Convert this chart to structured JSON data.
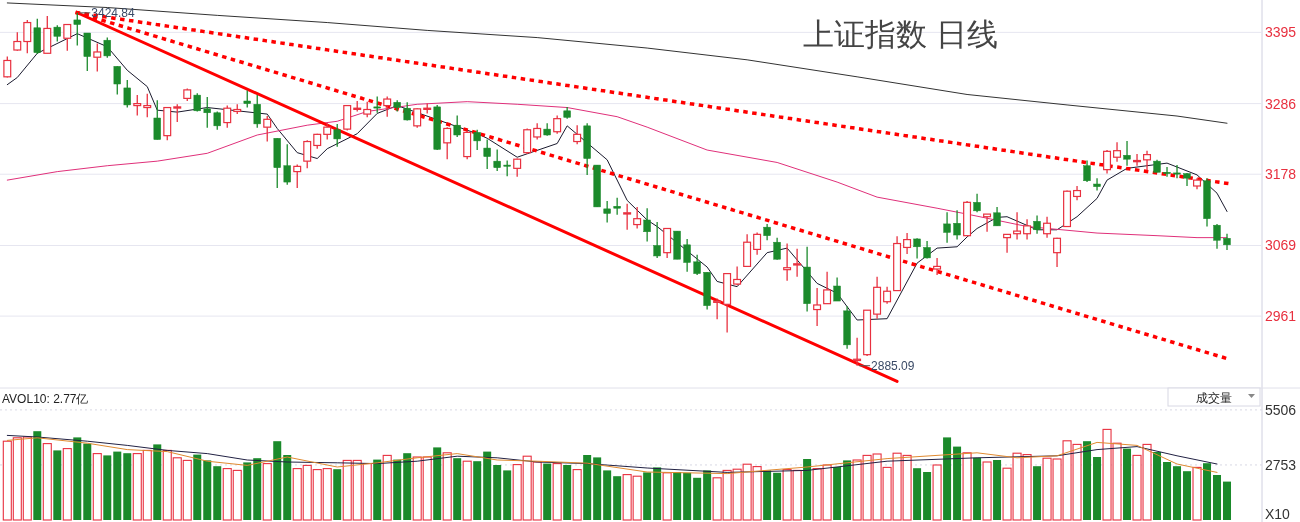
{
  "chart_data": [
    {
      "type": "candlestick",
      "title": "上证指数 日线",
      "categories": [
        null,
        null,
        null,
        null,
        null,
        null,
        null,
        null,
        null,
        null,
        null,
        null,
        null,
        null,
        null,
        null,
        null,
        null,
        null,
        null,
        null,
        null,
        null,
        null,
        null,
        null,
        null,
        null,
        null,
        null,
        null,
        null,
        null,
        null,
        null,
        null,
        null,
        null,
        null,
        null,
        null,
        null,
        null,
        null,
        null,
        null,
        null,
        null,
        null,
        null,
        null,
        null,
        null,
        null,
        null,
        null,
        null,
        null,
        null,
        null,
        null,
        null,
        null,
        null,
        null,
        null,
        null,
        null,
        null,
        null,
        null,
        null,
        null,
        null,
        null,
        null,
        null,
        null,
        null,
        null,
        null,
        null,
        null,
        null,
        null,
        null,
        null,
        null,
        null,
        null,
        null,
        null,
        null,
        null,
        null,
        null,
        null,
        null,
        null,
        null,
        null,
        null,
        null,
        null,
        null,
        null,
        null,
        null,
        null,
        null,
        null,
        null,
        null,
        null,
        null,
        null,
        null,
        null,
        null,
        null,
        null,
        null,
        null
      ],
      "ohlc": [
        [
          3327,
          3358,
          3326,
          3352
        ],
        [
          3368,
          3395,
          3367,
          3381
        ],
        [
          3381,
          3414,
          3363,
          3410
        ],
        [
          3402,
          3416,
          3362,
          3364
        ],
        [
          3363,
          3420,
          3363,
          3401
        ],
        [
          3403,
          3406,
          3381,
          3389
        ],
        [
          3386,
          3407,
          3367,
          3407
        ],
        [
          3414,
          3424.84,
          3375,
          3407
        ],
        [
          3394,
          3394,
          3336,
          3358
        ],
        [
          3357,
          3378,
          3335,
          3365
        ],
        [
          3383,
          3387,
          3356,
          3359
        ],
        [
          3343,
          3343,
          3300,
          3316
        ],
        [
          3310,
          3322,
          3280,
          3284
        ],
        [
          3283,
          3299,
          3268,
          3286
        ],
        [
          3280,
          3301,
          3265,
          3283
        ],
        [
          3264,
          3291,
          3231,
          3231
        ],
        [
          3237,
          3280,
          3230,
          3280
        ],
        [
          3280,
          3285,
          3258,
          3281
        ],
        [
          3294,
          3309,
          3290,
          3307
        ],
        [
          3299,
          3302,
          3274,
          3275
        ],
        [
          3278,
          3296,
          3249,
          3272
        ],
        [
          3272,
          3274,
          3246,
          3252
        ],
        [
          3257,
          3283,
          3249,
          3279
        ],
        [
          3274,
          3285,
          3270,
          3277
        ],
        [
          3290,
          3306,
          3280,
          3286
        ],
        [
          3285,
          3299,
          3249,
          3255
        ],
        [
          3250,
          3267,
          3228,
          3262
        ],
        [
          3233,
          3233,
          3157,
          3188
        ],
        [
          3191,
          3224,
          3162,
          3166
        ],
        [
          3182,
          3193,
          3157,
          3190
        ],
        [
          3198,
          3230,
          3187,
          3228
        ],
        [
          3222,
          3240,
          3217,
          3239
        ],
        [
          3239,
          3256,
          3231,
          3250
        ],
        [
          3246,
          3255,
          3220,
          3232
        ],
        [
          3247,
          3283,
          3245,
          3283
        ],
        [
          3278,
          3290,
          3274,
          3279
        ],
        [
          3270,
          3289,
          3265,
          3277
        ],
        [
          3281,
          3297,
          3272,
          3280
        ],
        [
          3283,
          3297,
          3266,
          3293
        ],
        [
          3288,
          3291,
          3274,
          3280
        ],
        [
          3279,
          3288,
          3260,
          3261
        ],
        [
          3252,
          3279,
          3249,
          3278
        ],
        [
          3278,
          3286,
          3271,
          3279
        ],
        [
          3281,
          3284,
          3215,
          3216
        ],
        [
          3226,
          3250,
          3201,
          3248
        ],
        [
          3253,
          3268,
          3235,
          3238
        ],
        [
          3205,
          3244,
          3201,
          3242
        ],
        [
          3242,
          3246,
          3215,
          3229
        ],
        [
          3218,
          3231,
          3186,
          3205
        ],
        [
          3198,
          3216,
          3183,
          3188
        ],
        [
          3192,
          3199,
          3175,
          3191
        ],
        [
          3187,
          3202,
          3174,
          3201
        ],
        [
          3211,
          3248,
          3209,
          3246
        ],
        [
          3235,
          3256,
          3231,
          3248
        ],
        [
          3247,
          3256,
          3237,
          3238
        ],
        [
          3243,
          3268,
          3240,
          3263
        ],
        [
          3275,
          3281,
          3263,
          3265
        ],
        [
          3228,
          3253,
          3224,
          3239
        ],
        [
          3252,
          3256,
          3177,
          3202
        ],
        [
          3192,
          3192,
          3128,
          3128
        ],
        [
          3125,
          3137,
          3104,
          3118
        ],
        [
          3129,
          3142,
          3116,
          3126
        ],
        [
          3118,
          3133,
          3093,
          3119
        ],
        [
          3101,
          3128,
          3095,
          3110
        ],
        [
          3108,
          3126,
          3075,
          3090
        ],
        [
          3069,
          3105,
          3050,
          3053
        ],
        [
          3058,
          3095,
          3050,
          3095
        ],
        [
          3091,
          3091,
          3048,
          3048
        ],
        [
          3070,
          3079,
          3029,
          3043
        ],
        [
          3044,
          3055,
          3024,
          3026
        ],
        [
          3028,
          3028,
          2971,
          2977
        ],
        [
          2982,
          2988,
          2956,
          2984
        ],
        [
          2979,
          3026,
          2936,
          3026
        ],
        [
          3010,
          3037,
          3008,
          3017
        ],
        [
          3037,
          3086,
          3036,
          3074
        ],
        [
          3063,
          3089,
          3055,
          3086
        ],
        [
          3097,
          3102,
          3077,
          3084
        ],
        [
          3074,
          3081,
          3047,
          3048
        ],
        [
          3032,
          3072,
          3015,
          3035
        ],
        [
          3040,
          3064,
          3021,
          3041
        ],
        [
          3036,
          3067,
          2968,
          2980
        ],
        [
          2971,
          3004,
          2946,
          2978
        ],
        [
          2980,
          3029,
          2980,
          3001
        ],
        [
          3007,
          3020,
          2984,
          2984
        ],
        [
          2969,
          2976,
          2911,
          2917
        ],
        [
          2893,
          2928,
          2885.09,
          2895
        ],
        [
          2902,
          2970,
          2900,
          2970
        ],
        [
          2964,
          3021,
          2957,
          3005
        ],
        [
          2983,
          3006,
          2980,
          2999
        ],
        [
          3000,
          3083,
          3000,
          3072
        ],
        [
          3066,
          3088,
          3056,
          3078
        ],
        [
          3079,
          3080,
          3049,
          3067
        ],
        [
          3066,
          3076,
          3049,
          3050
        ],
        [
          3033,
          3050,
          3024,
          3037
        ],
        [
          3102,
          3120,
          3073,
          3089
        ],
        [
          3103,
          3123,
          3078,
          3085
        ],
        [
          3084,
          3137,
          3084,
          3135
        ],
        [
          3135,
          3148,
          3120,
          3122
        ],
        [
          3113,
          3117,
          3090,
          3117
        ],
        [
          3119,
          3128,
          3099,
          3099
        ],
        [
          3081,
          3086,
          3058,
          3086
        ],
        [
          3087,
          3120,
          3078,
          3091
        ],
        [
          3087,
          3109,
          3078,
          3099
        ],
        [
          3106,
          3115,
          3087,
          3093
        ],
        [
          3087,
          3113,
          3081,
          3103
        ],
        [
          3058,
          3081,
          3036,
          3080
        ],
        [
          3098,
          3153,
          3098,
          3152
        ],
        [
          3144,
          3160,
          3138,
          3153
        ],
        [
          3191,
          3199,
          3166,
          3168
        ],
        [
          3163,
          3172,
          3153,
          3159
        ],
        [
          3185,
          3215,
          3179,
          3213
        ],
        [
          3204,
          3227,
          3197,
          3214
        ],
        [
          3207,
          3229,
          3191,
          3201
        ],
        [
          3198,
          3209,
          3191,
          3199
        ],
        [
          3200,
          3214,
          3184,
          3208
        ],
        [
          3198,
          3200,
          3181,
          3181
        ],
        [
          3181,
          3189,
          3174,
          3179
        ],
        [
          3180,
          3192,
          3172,
          3179
        ],
        [
          3179,
          3180,
          3160,
          3172
        ],
        [
          3160,
          3172,
          3155,
          3169
        ],
        [
          3168,
          3172,
          3098,
          3110
        ],
        [
          3100,
          3102,
          3064,
          3077
        ],
        [
          3080,
          3087,
          3062,
          3070
        ]
      ],
      "series": [
        {
          "type": "line",
          "color": "#1a1a2e",
          "values": [
            3315,
            3326,
            null,
            3363,
            null,
            null,
            null,
            3393,
            null,
            null,
            3373,
            null,
            3337,
            null,
            3312,
            3276,
            null,
            3273,
            null,
            null,
            3280,
            null,
            null,
            null,
            null,
            null,
            3270,
            3248,
            null,
            3211,
            null,
            3202,
            3217,
            null,
            null,
            3240,
            null,
            3271,
            null,
            3283,
            null,
            null,
            null,
            null,
            null,
            null,
            null,
            3240,
            3233,
            null,
            null,
            3204,
            null,
            null,
            null,
            3225,
            3252,
            null,
            null,
            null,
            3200,
            null,
            3138,
            null,
            3108,
            3098,
            null,
            null,
            null,
            null,
            3036,
            3014,
            null,
            3006,
            null,
            null,
            3058,
            null,
            3065,
            null,
            null,
            3011,
            null,
            2996,
            null,
            2955,
            null,
            null,
            2957,
            null,
            null,
            3042,
            null,
            3065,
            null,
            3067,
            3082,
            3095,
            null,
            3112,
            3113,
            null,
            null,
            3093,
            null,
            3093,
            null,
            3113,
            null,
            3141,
            3169,
            null,
            3187,
            null,
            null,
            null,
            3195,
            null,
            null,
            3177,
            null,
            3149,
            3121
          ]
        },
        {
          "type": "line",
          "color": "#e0307a",
          "values": [
            3169,
            null,
            null,
            null,
            null,
            3182,
            null,
            null,
            null,
            null,
            3191,
            null,
            null,
            null,
            null,
            3198,
            null,
            null,
            null,
            null,
            3210,
            null,
            null,
            null,
            null,
            3238,
            null,
            null,
            null,
            null,
            3253,
            null,
            null,
            3259,
            null,
            null,
            3274,
            null,
            null,
            null,
            null,
            3285,
            null,
            null,
            null,
            null,
            3289,
            null,
            null,
            null,
            null,
            3285,
            null,
            null,
            null,
            null,
            3280,
            null,
            null,
            null,
            null,
            3266,
            null,
            null,
            3250,
            null,
            null,
            null,
            null,
            null,
            3215,
            null,
            null,
            null,
            null,
            null,
            null,
            3196,
            null,
            null,
            null,
            null,
            null,
            3166,
            null,
            null,
            null,
            3143,
            null,
            null,
            null,
            null,
            null,
            3126,
            null,
            null,
            3117,
            null,
            null,
            null,
            null,
            null,
            3098,
            null,
            null,
            null,
            null,
            null,
            null,
            3088,
            null,
            null,
            null,
            null,
            null,
            3084,
            null,
            null,
            null,
            3081,
            null,
            null,
            3081
          ]
        },
        {
          "type": "line",
          "color": "#333333",
          "values": [
            3440,
            null,
            null,
            null,
            null,
            null,
            null,
            null,
            null,
            null,
            3433,
            null,
            null,
            null,
            null,
            null,
            null,
            null,
            null,
            null,
            null,
            3421,
            null,
            null,
            null,
            null,
            null,
            null,
            null,
            null,
            null,
            null,
            3410,
            null,
            null,
            null,
            null,
            null,
            null,
            null,
            null,
            null,
            3398,
            null,
            null,
            null,
            null,
            null,
            null,
            null,
            null,
            null,
            null,
            3387,
            null,
            null,
            null,
            null,
            null,
            null,
            null,
            null,
            null,
            null,
            3371,
            null,
            null,
            null,
            null,
            null,
            null,
            null,
            null,
            null,
            3353,
            null,
            null,
            null,
            null,
            null,
            null,
            null,
            null,
            null,
            null,
            3327,
            null,
            null,
            null,
            null,
            null,
            null,
            null,
            null,
            null,
            null,
            3300,
            null,
            null,
            null,
            null,
            null,
            null,
            null,
            null,
            null,
            3284,
            null,
            null,
            null,
            null,
            null,
            null,
            null,
            null,
            null,
            null,
            3267,
            null,
            null,
            null,
            null,
            3256
          ]
        },
        {
          "type": "line",
          "color": "#ff0000",
          "line_style": "solid",
          "values": [
            null,
            null,
            null,
            null,
            null,
            null,
            null,
            3425,
            null,
            null,
            null,
            null,
            null,
            null,
            null,
            null,
            null,
            null,
            null,
            null,
            null,
            null,
            null,
            null,
            null,
            null,
            null,
            null,
            null,
            null,
            null,
            null,
            null,
            null,
            null,
            null,
            null,
            null,
            null,
            null,
            null,
            null,
            null,
            null,
            null,
            null,
            null,
            null,
            null,
            null,
            null,
            null,
            null,
            null,
            null,
            null,
            null,
            null,
            null,
            null,
            null,
            null,
            null,
            null,
            null,
            null,
            null,
            null,
            null,
            null,
            null,
            null,
            null,
            null,
            null,
            null,
            null,
            null,
            null,
            null,
            null,
            null,
            null,
            null,
            null,
            null,
            null,
            null,
            null,
            2861,
            null,
            null,
            null,
            null,
            null,
            null,
            null,
            null,
            null,
            null,
            null,
            null,
            null,
            null,
            null,
            null,
            null,
            null,
            null,
            null,
            null,
            null,
            null,
            null,
            null,
            null,
            null,
            null,
            null,
            null,
            null,
            null,
            null
          ]
        },
        {
          "type": "line",
          "color": "#ff0000",
          "line_style": "dotted",
          "values": [
            null,
            null,
            null,
            null,
            null,
            null,
            null,
            3425,
            null,
            null,
            null,
            null,
            null,
            null,
            null,
            null,
            null,
            null,
            null,
            null,
            null,
            null,
            null,
            null,
            null,
            null,
            null,
            null,
            null,
            null,
            null,
            null,
            null,
            null,
            null,
            null,
            null,
            null,
            null,
            null,
            null,
            null,
            null,
            null,
            null,
            null,
            null,
            null,
            null,
            null,
            null,
            null,
            null,
            null,
            null,
            null,
            null,
            null,
            null,
            null,
            null,
            null,
            null,
            null,
            null,
            null,
            null,
            null,
            null,
            null,
            null,
            null,
            null,
            null,
            null,
            null,
            null,
            null,
            null,
            null,
            null,
            null,
            null,
            null,
            null,
            null,
            null,
            null,
            null,
            null,
            null,
            null,
            null,
            null,
            null,
            null,
            null,
            null,
            null,
            null,
            null,
            null,
            null,
            null,
            null,
            null,
            null,
            null,
            null,
            null,
            null,
            null,
            null,
            null,
            null,
            null,
            null,
            null,
            null,
            null,
            null,
            null,
            3164
          ]
        },
        {
          "type": "line",
          "color": "#ff0000",
          "line_style": "dotted",
          "values": [
            null,
            null,
            null,
            null,
            null,
            null,
            null,
            3425,
            null,
            null,
            null,
            null,
            null,
            null,
            null,
            null,
            null,
            null,
            null,
            null,
            null,
            null,
            null,
            null,
            null,
            null,
            null,
            null,
            null,
            null,
            null,
            null,
            null,
            null,
            null,
            null,
            null,
            null,
            null,
            null,
            null,
            null,
            null,
            null,
            null,
            null,
            null,
            null,
            null,
            null,
            null,
            null,
            null,
            null,
            null,
            null,
            null,
            null,
            null,
            null,
            null,
            null,
            null,
            null,
            null,
            null,
            null,
            null,
            null,
            null,
            null,
            null,
            null,
            null,
            null,
            null,
            null,
            null,
            null,
            null,
            null,
            null,
            null,
            null,
            null,
            null,
            null,
            null,
            null,
            null,
            null,
            null,
            null,
            null,
            null,
            null,
            null,
            null,
            null,
            null,
            null,
            null,
            null,
            null,
            null,
            null,
            null,
            null,
            null,
            null,
            null,
            null,
            null,
            null,
            null,
            null,
            null,
            null,
            null,
            null,
            null,
            null,
            2896
          ]
        }
      ],
      "annotations": [
        "3424.84",
        "2885.09"
      ],
      "ylim": [
        2851,
        3444.5
      ],
      "yticks": [
        2961,
        3069,
        3178,
        3286,
        3395
      ],
      "grid": "y",
      "tick_labels": "y"
    },
    {
      "type": "bar",
      "categories": [
        null,
        null,
        null,
        null,
        null,
        null,
        null,
        null,
        null,
        null,
        null,
        null,
        null,
        null,
        null,
        null,
        null,
        null,
        null,
        null,
        null,
        null,
        null,
        null,
        null,
        null,
        null,
        null,
        null,
        null,
        null,
        null,
        null,
        null,
        null,
        null,
        null,
        null,
        null,
        null,
        null,
        null,
        null,
        null,
        null,
        null,
        null,
        null,
        null,
        null,
        null,
        null,
        null,
        null,
        null,
        null,
        null,
        null,
        null,
        null,
        null,
        null,
        null,
        null,
        null,
        null,
        null,
        null,
        null,
        null,
        null,
        null,
        null,
        null,
        null,
        null,
        null,
        null,
        null,
        null,
        null,
        null,
        null,
        null,
        null,
        null,
        null,
        null,
        null,
        null,
        null,
        null,
        null,
        null,
        null,
        null,
        null,
        null,
        null,
        null,
        null,
        null,
        null,
        null,
        null,
        null,
        null,
        null,
        null,
        null,
        null,
        null,
        null,
        null,
        null,
        null,
        null,
        null,
        null,
        null,
        null,
        null,
        null
      ],
      "values": [
        3940,
        4110,
        4150,
        4440,
        3820,
        3480,
        3570,
        4130,
        3820,
        3320,
        3230,
        3420,
        3340,
        3320,
        3480,
        3780,
        3480,
        3110,
        2980,
        3270,
        2980,
        2690,
        2570,
        2480,
        2880,
        3090,
        2820,
        3940,
        3250,
        2570,
        2730,
        2520,
        2570,
        2540,
        2980,
        2980,
        2820,
        3020,
        3230,
        3020,
        3340,
        3150,
        3150,
        3630,
        3360,
        3090,
        2940,
        2940,
        3420,
        2750,
        2480,
        2770,
        3190,
        2900,
        2820,
        2820,
        2750,
        2520,
        3250,
        3130,
        2480,
        2190,
        2270,
        2190,
        2380,
        2630,
        2360,
        2400,
        2360,
        2110,
        2480,
        2110,
        2480,
        2540,
        2790,
        2670,
        2480,
        2360,
        2520,
        2480,
        3050,
        2570,
        2750,
        2650,
        2980,
        3000,
        3230,
        3300,
        2630,
        3340,
        3230,
        2590,
        2400,
        2750,
        4130,
        3670,
        3360,
        3110,
        2900,
        3000,
        2590,
        3340,
        3270,
        2690,
        3090,
        3050,
        3960,
        3780,
        3940,
        3150,
        4530,
        3840,
        3570,
        3230,
        3780,
        3400,
        2900,
        2690,
        2440,
        2630,
        2840,
        2250,
        1920
      ],
      "colors": [
        "#e8303f",
        "#e8303f",
        "#e8303f",
        "#1b8a2b",
        "#e8303f",
        "#1b8a2b",
        "#e8303f",
        "#1b8a2b",
        "#1b8a2b",
        "#e8303f",
        "#1b8a2b",
        "#1b8a2b",
        "#1b8a2b",
        "#e8303f",
        "#e8303f",
        "#1b8a2b",
        "#e8303f",
        "#e8303f",
        "#e8303f",
        "#1b8a2b",
        "#1b8a2b",
        "#1b8a2b",
        "#e8303f",
        "#e8303f",
        "#1b8a2b",
        "#1b8a2b",
        "#e8303f",
        "#1b8a2b",
        "#1b8a2b",
        "#e8303f",
        "#e8303f",
        "#e8303f",
        "#e8303f",
        "#1b8a2b",
        "#e8303f",
        "#e8303f",
        "#e8303f",
        "#1b8a2b",
        "#e8303f",
        "#1b8a2b",
        "#1b8a2b",
        "#e8303f",
        "#e8303f",
        "#1b8a2b",
        "#e8303f",
        "#1b8a2b",
        "#e8303f",
        "#1b8a2b",
        "#1b8a2b",
        "#1b8a2b",
        "#1b8a2b",
        "#e8303f",
        "#e8303f",
        "#e8303f",
        "#1b8a2b",
        "#e8303f",
        "#1b8a2b",
        "#e8303f",
        "#1b8a2b",
        "#1b8a2b",
        "#1b8a2b",
        "#1b8a2b",
        "#e8303f",
        "#e8303f",
        "#1b8a2b",
        "#1b8a2b",
        "#e8303f",
        "#1b8a2b",
        "#1b8a2b",
        "#1b8a2b",
        "#1b8a2b",
        "#e8303f",
        "#e8303f",
        "#e8303f",
        "#e8303f",
        "#e8303f",
        "#1b8a2b",
        "#1b8a2b",
        "#e8303f",
        "#e8303f",
        "#1b8a2b",
        "#e8303f",
        "#e8303f",
        "#1b8a2b",
        "#1b8a2b",
        "#e8303f",
        "#e8303f",
        "#e8303f",
        "#e8303f",
        "#e8303f",
        "#e8303f",
        "#1b8a2b",
        "#1b8a2b",
        "#e8303f",
        "#1b8a2b",
        "#1b8a2b",
        "#e8303f",
        "#1b8a2b",
        "#e8303f",
        "#1b8a2b",
        "#e8303f",
        "#e8303f",
        "#e8303f",
        "#1b8a2b",
        "#e8303f",
        "#e8303f",
        "#e8303f",
        "#e8303f",
        "#1b8a2b",
        "#1b8a2b",
        "#e8303f",
        "#e8303f",
        "#1b8a2b",
        "#e8303f",
        "#e8303f",
        "#1b8a2b",
        "#1b8a2b",
        "#1b8a2b",
        "#1b8a2b",
        "#e8303f",
        "#1b8a2b",
        "#1b8a2b",
        "#1b8a2b"
      ],
      "series": [
        {
          "type": "line",
          "color": "#222244",
          "values": [
            4230,
            null,
            null,
            4150,
            null,
            null,
            null,
            null,
            3940,
            null,
            null,
            null,
            3730,
            null,
            null,
            null,
            3480,
            null,
            null,
            null,
            3320,
            null,
            null,
            null,
            3000,
            null,
            null,
            null,
            2900,
            null,
            null,
            null,
            null,
            2860,
            null,
            null,
            null,
            2820,
            null,
            null,
            null,
            2940,
            null,
            null,
            null,
            3190,
            null,
            null,
            null,
            3110,
            null,
            null,
            null,
            2900,
            null,
            null,
            null,
            null,
            2820,
            null,
            null,
            null,
            null,
            null,
            2600,
            null,
            null,
            null,
            null,
            null,
            null,
            null,
            2380,
            null,
            null,
            null,
            null,
            null,
            null,
            null,
            2480,
            null,
            null,
            null,
            null,
            null,
            null,
            null,
            2940,
            null,
            null,
            null,
            null,
            null,
            null,
            null,
            null,
            3110,
            null,
            null,
            null,
            null,
            null,
            null,
            null,
            3210,
            null,
            null,
            null,
            3520,
            null,
            null,
            null,
            3670,
            null,
            null,
            null,
            3210,
            null,
            null,
            null,
            2800,
            null
          ]
        },
        {
          "type": "line",
          "color": "#e08a30",
          "values": [
            3980,
            null,
            null,
            4110,
            null,
            null,
            null,
            null,
            3840,
            null,
            null,
            null,
            3520,
            null,
            null,
            null,
            3420,
            null,
            null,
            null,
            2940,
            null,
            null,
            null,
            2730,
            null,
            null,
            null,
            3150,
            null,
            null,
            null,
            null,
            2650,
            null,
            null,
            null,
            2860,
            null,
            null,
            null,
            3110,
            null,
            null,
            null,
            3320,
            null,
            null,
            null,
            3000,
            null,
            null,
            null,
            2940,
            null,
            null,
            null,
            null,
            2840,
            null,
            null,
            null,
            null,
            null,
            2400,
            null,
            null,
            null,
            null,
            null,
            null,
            null,
            2320,
            null,
            null,
            null,
            null,
            null,
            null,
            null,
            2650,
            null,
            null,
            null,
            null,
            null,
            null,
            null,
            3070,
            null,
            null,
            null,
            null,
            null,
            null,
            null,
            null,
            3360,
            null,
            null,
            null,
            3110,
            null,
            null,
            null,
            3210,
            null,
            null,
            null,
            3880,
            null,
            null,
            null,
            3730,
            null,
            null,
            null,
            2800,
            null,
            null,
            null,
            2380,
            null
          ]
        }
      ],
      "annotations": [
        "AVOL10: 2.77亿",
        "成交量"
      ],
      "ylim": [
        0,
        6500
      ],
      "yticks": [
        {
          "value": 0,
          "label": "X10"
        },
        2753,
        5506
      ],
      "grid": "y",
      "tick_labels": "y"
    }
  ]
}
